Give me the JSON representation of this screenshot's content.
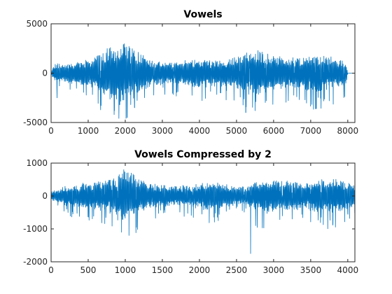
{
  "colors": {
    "line": "#0072bd",
    "axis": "#262626",
    "background": "#ffffff"
  },
  "chart_data": [
    {
      "type": "line",
      "title": "Vowels",
      "xlabel": "",
      "ylabel": "",
      "xlim": [
        0,
        8192
      ],
      "ylim": [
        -5000,
        5000
      ],
      "xticks": [
        0,
        1000,
        2000,
        3000,
        4000,
        5000,
        6000,
        7000,
        8000
      ],
      "yticks": [
        -5000,
        0,
        5000
      ],
      "xtick_labels": [
        "0",
        "1000",
        "2000",
        "3000",
        "4000",
        "5000",
        "6000",
        "7000",
        "8000"
      ],
      "ytick_labels": [
        "-5000",
        "0",
        "5000"
      ],
      "grid": false,
      "n_samples": 8000,
      "envelope": [
        [
          0,
          0
        ],
        [
          80,
          900
        ],
        [
          400,
          1000
        ],
        [
          800,
          1200
        ],
        [
          1200,
          1700
        ],
        [
          1600,
          2600
        ],
        [
          2000,
          3000
        ],
        [
          2400,
          2000
        ],
        [
          2800,
          1200
        ],
        [
          3200,
          1100
        ],
        [
          3600,
          1300
        ],
        [
          4000,
          1500
        ],
        [
          4400,
          1300
        ],
        [
          4800,
          1400
        ],
        [
          5200,
          2000
        ],
        [
          5600,
          2200
        ],
        [
          6000,
          1700
        ],
        [
          6400,
          1500
        ],
        [
          6800,
          1700
        ],
        [
          7200,
          1900
        ],
        [
          7600,
          1600
        ],
        [
          7950,
          1200
        ],
        [
          8000,
          0
        ]
      ],
      "negative_spikes": [
        [
          160,
          -2500
        ],
        [
          1700,
          -4200
        ],
        [
          1850,
          -3200
        ],
        [
          2050,
          -4500
        ],
        [
          2250,
          -3500
        ],
        [
          5250,
          -4000
        ],
        [
          5500,
          -3800
        ],
        [
          5800,
          -2800
        ],
        [
          7150,
          -3600
        ],
        [
          7500,
          -2800
        ]
      ],
      "positive_spikes": [
        [
          1950,
          2900
        ],
        [
          2100,
          2700
        ],
        [
          5350,
          1800
        ]
      ]
    },
    {
      "type": "line",
      "title": "Vowels Compressed by 2",
      "xlabel": "",
      "ylabel": "",
      "xlim": [
        0,
        4096
      ],
      "ylim": [
        -2000,
        1000
      ],
      "xticks": [
        0,
        500,
        1000,
        1500,
        2000,
        2500,
        3000,
        3500,
        4000
      ],
      "yticks": [
        -2000,
        -1000,
        0,
        1000
      ],
      "xtick_labels": [
        "0",
        "500",
        "1000",
        "1500",
        "2000",
        "2500",
        "3000",
        "3500",
        "4000"
      ],
      "ytick_labels": [
        "-2000",
        "-1000",
        "0",
        "1000"
      ],
      "grid": false,
      "n_samples": 4096,
      "envelope": [
        [
          0,
          120
        ],
        [
          200,
          300
        ],
        [
          400,
          380
        ],
        [
          600,
          420
        ],
        [
          800,
          520
        ],
        [
          900,
          600
        ],
        [
          1000,
          800
        ],
        [
          1100,
          650
        ],
        [
          1300,
          380
        ],
        [
          1500,
          330
        ],
        [
          1700,
          300
        ],
        [
          1900,
          330
        ],
        [
          2100,
          420
        ],
        [
          2300,
          380
        ],
        [
          2500,
          250
        ],
        [
          2650,
          300
        ],
        [
          2800,
          520
        ],
        [
          3000,
          500
        ],
        [
          3200,
          450
        ],
        [
          3400,
          380
        ],
        [
          3600,
          480
        ],
        [
          3800,
          520
        ],
        [
          4000,
          400
        ],
        [
          4096,
          300
        ]
      ],
      "negative_spikes": [
        [
          950,
          -1100
        ],
        [
          1050,
          -1200
        ],
        [
          1150,
          -950
        ],
        [
          2690,
          -1750
        ],
        [
          3250,
          -700
        ],
        [
          3800,
          -850
        ]
      ],
      "positive_spikes": [
        [
          980,
          800
        ],
        [
          1020,
          700
        ],
        [
          2900,
          350
        ],
        [
          3650,
          500
        ]
      ]
    }
  ]
}
